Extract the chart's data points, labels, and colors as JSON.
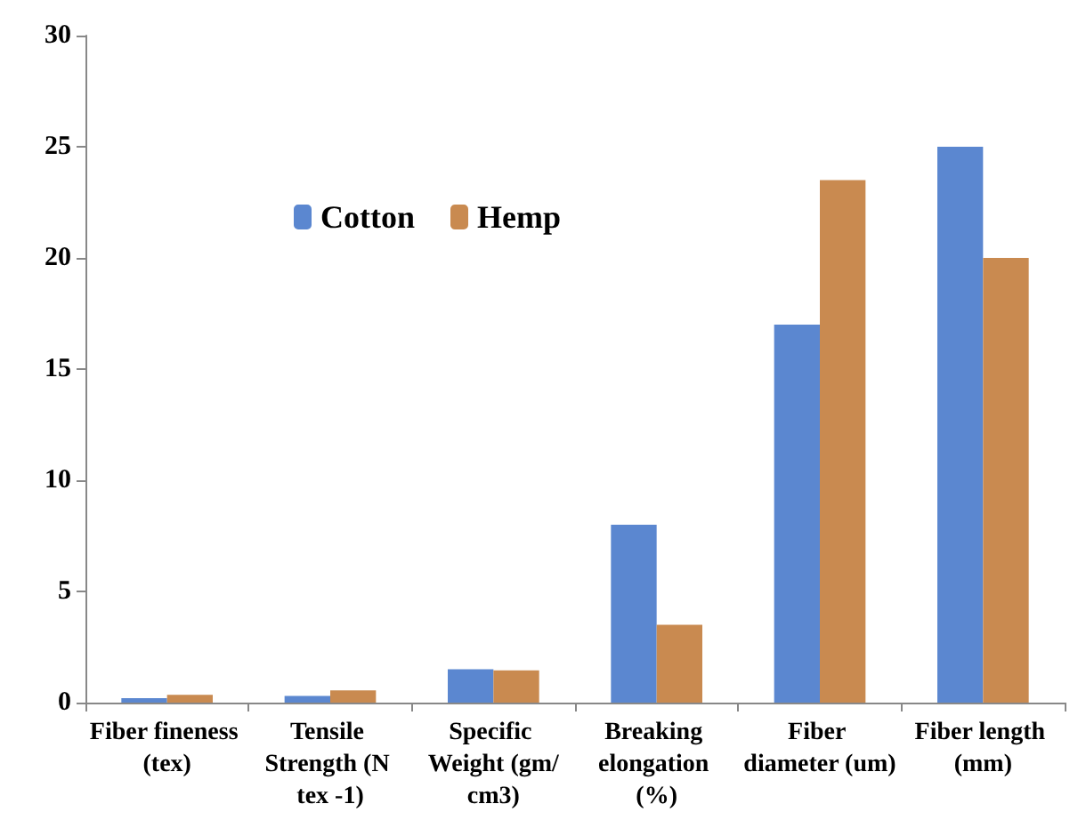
{
  "chart_data": {
    "type": "bar",
    "categories": [
      "Fiber fineness (tex)",
      "Tensile Strength (N tex -1)",
      "Specific Weight (gm/cm3)",
      "Breaking elongation (%)",
      "Fiber diameter (um)",
      "Fiber length (mm)"
    ],
    "series": [
      {
        "name": "Cotton",
        "color": "#5b87d0",
        "values": [
          0.2,
          0.3,
          1.5,
          8,
          17,
          25
        ]
      },
      {
        "name": "Hemp",
        "color": "#c98a50",
        "values": [
          0.35,
          0.55,
          1.45,
          3.5,
          23.5,
          20
        ]
      }
    ],
    "ylim": [
      0,
      30
    ],
    "yticks": [
      0,
      5,
      10,
      15,
      20,
      25,
      30
    ],
    "grid": false,
    "legend": "top left"
  }
}
